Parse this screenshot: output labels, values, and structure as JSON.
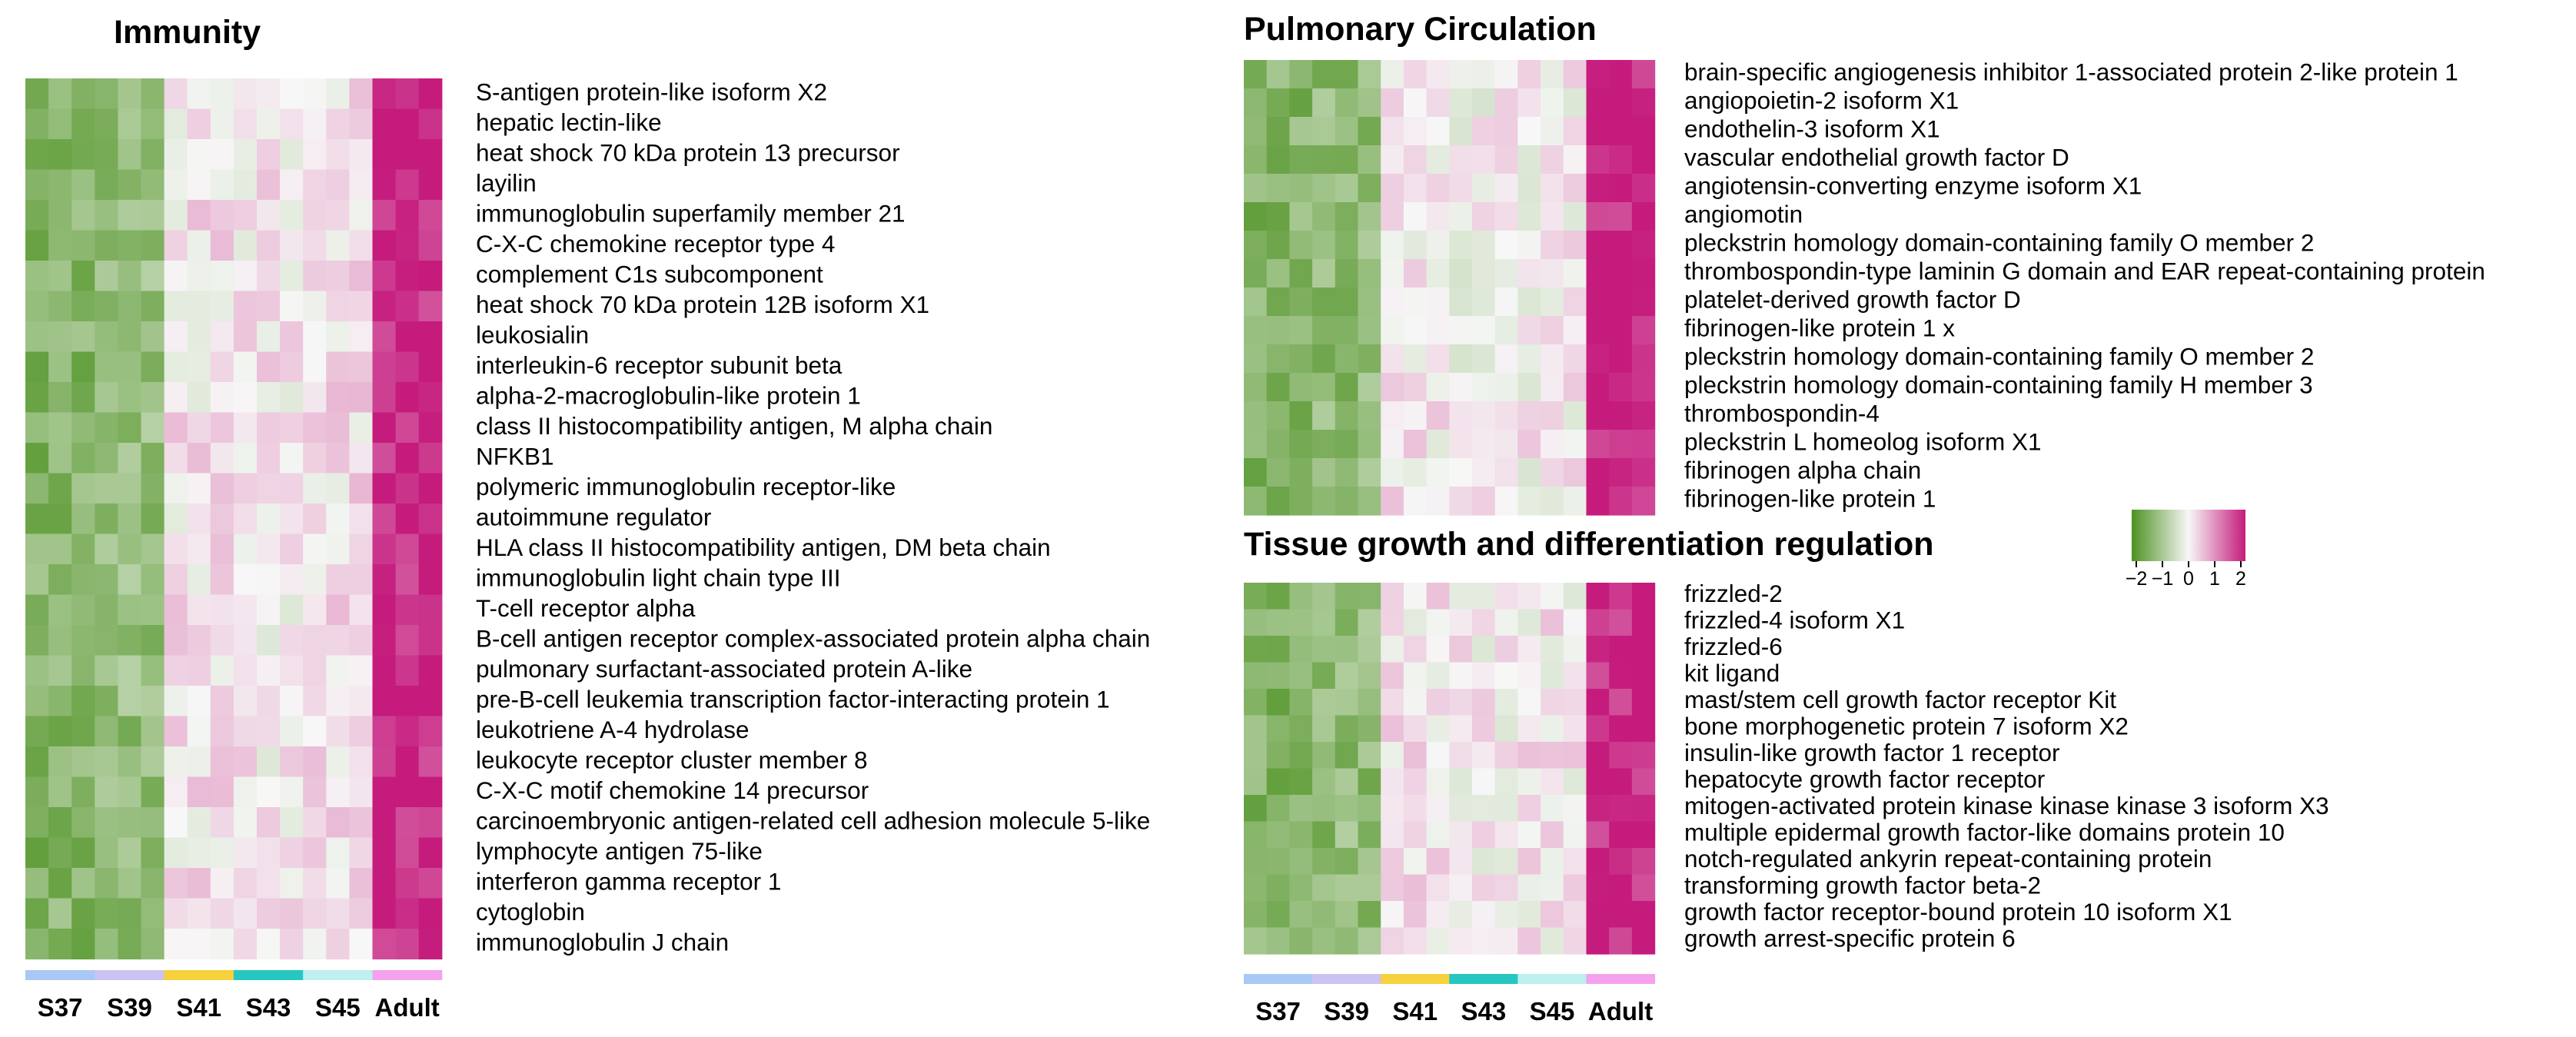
{
  "chart_data": [
    {
      "type": "heatmap",
      "title": "Immunity",
      "groups": [
        {
          "label": "S37",
          "color": "#a9c8f5"
        },
        {
          "label": "S39",
          "color": "#cbc3f2"
        },
        {
          "label": "S41",
          "color": "#f7d23c"
        },
        {
          "label": "S43",
          "color": "#26c6c3"
        },
        {
          "label": "S45",
          "color": "#bdf0ee"
        },
        {
          "label": "Adult",
          "color": "#f4a2ee"
        }
      ],
      "group_levels": [
        -1.35,
        -1.15,
        0.15,
        0.1,
        0.2,
        1.95
      ],
      "rows": [
        "S-antigen protein-like isoform X2",
        "hepatic lectin-like",
        "heat shock 70 kDa protein 13 precursor",
        "layilin",
        "immunoglobulin superfamily member 21",
        "C-X-C chemokine receptor type 4",
        "complement C1s subcomponent",
        "heat shock 70 kDa protein 12B isoform X1",
        "leukosialin",
        "interleukin-6 receptor subunit beta",
        "alpha-2-macroglobulin-like protein 1",
        "class II histocompatibility antigen, M alpha chain",
        "NFKB1",
        "polymeric immunoglobulin receptor-like",
        "autoimmune regulator",
        "HLA class II histocompatibility antigen, DM beta chain",
        "immunoglobulin light chain type III",
        "T-cell receptor alpha",
        "B-cell antigen receptor complex-associated protein alpha chain",
        "pulmonary surfactant-associated protein A-like",
        "pre-B-cell leukemia transcription factor-interacting protein 1",
        "leukotriene A-4 hydrolase",
        "leukocyte receptor cluster member 8",
        "C-X-C motif chemokine 14 precursor",
        "carcinoembryonic antigen-related cell adhesion molecule 5-like",
        "lymphocyte antigen 75-like",
        "interferon gamma receptor 1",
        "cytoglobin",
        "immunoglobulin J chain"
      ]
    },
    {
      "type": "heatmap",
      "title": "Pulmonary Circulation",
      "groups": [
        {
          "label": "S37",
          "color": "#a9c8f5"
        },
        {
          "label": "S39",
          "color": "#cbc3f2"
        },
        {
          "label": "S41",
          "color": "#f7d23c"
        },
        {
          "label": "S43",
          "color": "#26c6c3"
        },
        {
          "label": "S45",
          "color": "#bdf0ee"
        },
        {
          "label": "Adult",
          "color": "#f4a2ee"
        }
      ],
      "group_levels": [
        -1.35,
        -1.2,
        0.1,
        0.0,
        0.05,
        1.95
      ],
      "rows": [
        "brain-specific angiogenesis inhibitor 1-associated protein 2-like protein 1",
        "angiopoietin-2 isoform X1",
        "endothelin-3 isoform X1",
        "vascular endothelial growth factor D",
        "angiotensin-converting enzyme isoform X1",
        "angiomotin",
        "pleckstrin homology domain-containing family O member 2",
        "thrombospondin-type laminin G domain and EAR repeat-containing protein",
        "platelet-derived growth factor D",
        "fibrinogen-like protein 1 x",
        "pleckstrin homology domain-containing family O member 2",
        "pleckstrin homology domain-containing family H member 3",
        "thrombospondin-4",
        "pleckstrin L homeolog isoform X1",
        "fibrinogen alpha chain",
        "fibrinogen-like protein 1"
      ]
    },
    {
      "type": "heatmap",
      "title": "Tissue growth and differentiation regulation",
      "groups": [
        {
          "label": "S37",
          "color": "#a9c8f5"
        },
        {
          "label": "S39",
          "color": "#cbc3f2"
        },
        {
          "label": "S41",
          "color": "#f7d23c"
        },
        {
          "label": "S43",
          "color": "#26c6c3"
        },
        {
          "label": "S45",
          "color": "#bdf0ee"
        },
        {
          "label": "Adult",
          "color": "#f4a2ee"
        }
      ],
      "group_levels": [
        -1.35,
        -1.2,
        0.15,
        0.05,
        0.1,
        1.95
      ],
      "rows": [
        "frizzled-2",
        "frizzled-4 isoform X1",
        "frizzled-6",
        "kit ligand",
        "mast/stem cell growth factor receptor Kit",
        "bone morphogenetic protein 7 isoform X2",
        "insulin-like growth factor 1 receptor",
        "hepatocyte growth factor receptor",
        "mitogen-activated protein kinase kinase kinase 3 isoform X3",
        "multiple epidermal growth factor-like domains protein 10",
        "notch-regulated ankyrin repeat-containing protein",
        "transforming growth factor beta-2",
        "growth factor receptor-bound protein 10 isoform X1",
        "growth arrest-specific protein 6"
      ]
    }
  ],
  "legend": {
    "ticks": [
      "−2",
      "−1",
      "0",
      "1",
      "2"
    ],
    "range": [
      -2,
      2
    ],
    "colors": {
      "low": "#4d9221",
      "mid": "#f7f7f7",
      "high": "#c51b7d"
    }
  }
}
